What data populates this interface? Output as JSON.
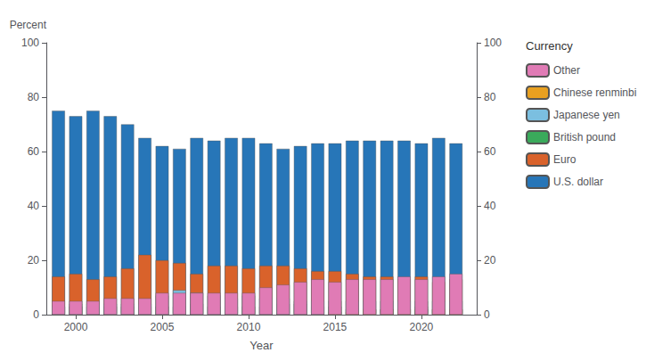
{
  "chart_data": {
    "type": "bar",
    "stacked": true,
    "xlabel": "Year",
    "ylabel": "Percent",
    "legend_title": "Currency",
    "legend": "right",
    "grid": false,
    "x": [
      1999,
      2000,
      2001,
      2002,
      2003,
      2004,
      2005,
      2006,
      2007,
      2008,
      2009,
      2010,
      2011,
      2012,
      2013,
      2014,
      2015,
      2016,
      2017,
      2018,
      2019,
      2020,
      2021,
      2022
    ],
    "xlim": [
      1998.3,
      2023.2
    ],
    "xticks": [
      2000,
      2005,
      2010,
      2015,
      2020
    ],
    "ylim": [
      0,
      100
    ],
    "yticks": [
      0,
      20,
      40,
      60,
      80,
      100
    ],
    "y2lim": [
      0,
      100
    ],
    "y2ticks": [
      0,
      20,
      40,
      60,
      80,
      100
    ],
    "series": [
      {
        "name": "U.S. dollar",
        "color": "#2776b8",
        "values": [
          75,
          73,
          75,
          73,
          70,
          65,
          62,
          61,
          65,
          64,
          65,
          65,
          63,
          61,
          62,
          63,
          63,
          64,
          64,
          64,
          64,
          63,
          65,
          63
        ]
      },
      {
        "name": "Euro",
        "color": "#d9622b",
        "values": [
          14,
          15,
          13,
          14,
          17,
          22,
          20,
          19,
          15,
          18,
          18,
          17,
          18,
          18,
          17,
          16,
          16,
          15,
          14,
          14,
          13,
          14,
          12,
          13
        ]
      },
      {
        "name": "British pound",
        "color": "#3aaa5b",
        "values": [
          3,
          3,
          3,
          3,
          3,
          3,
          3,
          3,
          4,
          3,
          3,
          3,
          3,
          4,
          4,
          3,
          3,
          2,
          2,
          2,
          2,
          3,
          2,
          2
        ]
      },
      {
        "name": "Japanese yen",
        "color": "#7bbfe0",
        "values": [
          3,
          4,
          4,
          4,
          4,
          4,
          7,
          9,
          8,
          7,
          6,
          7,
          6,
          6,
          5,
          5,
          5,
          5,
          5,
          5,
          5,
          5,
          5,
          5
        ]
      },
      {
        "name": "Chinese renminbi",
        "color": "#e8a020",
        "values": [
          0,
          0,
          0,
          0,
          0,
          0,
          0,
          0,
          0,
          0,
          0,
          0,
          0,
          0,
          0,
          0,
          1,
          1,
          2,
          2,
          2,
          2,
          2,
          2
        ]
      },
      {
        "name": "Other",
        "color": "#e07bb5",
        "values": [
          5,
          5,
          5,
          6,
          6,
          6,
          8,
          8,
          8,
          8,
          8,
          8,
          10,
          11,
          12,
          13,
          12,
          13,
          13,
          13,
          14,
          13,
          14,
          15
        ]
      }
    ]
  }
}
